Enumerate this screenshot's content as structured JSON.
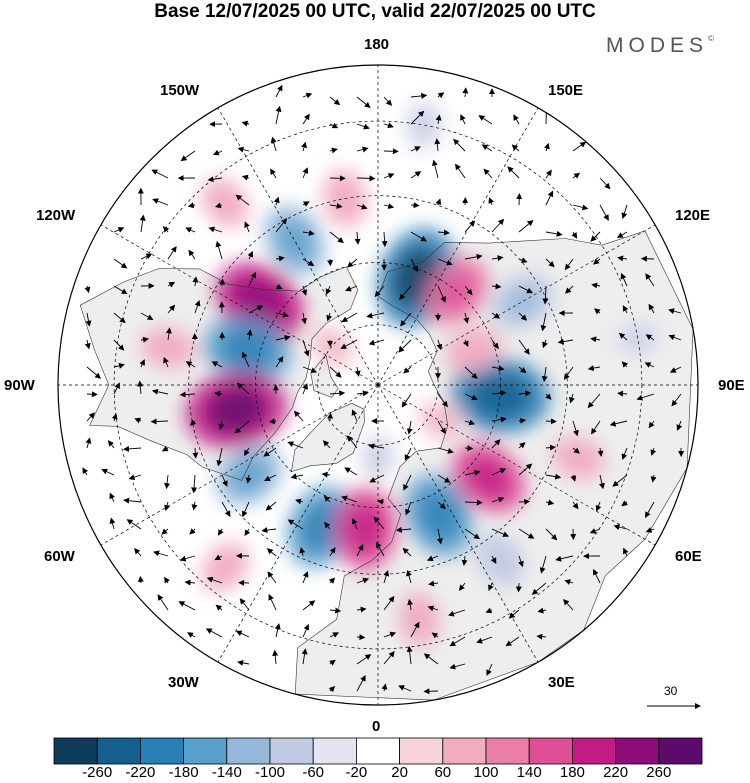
{
  "title": "Base 12/07/2025 00 UTC, valid 22/07/2025 00 UTC",
  "brand": "MODES",
  "brand_mark": "©",
  "longitude_labels": {
    "lon_180": "180",
    "lon_150e": "150E",
    "lon_120e": "120E",
    "lon_90e": "90E",
    "lon_60e": "60E",
    "lon_30e": "30E",
    "lon_0": "0",
    "lon_30w": "30W",
    "lon_60w": "60W",
    "lon_90w": "90W",
    "lon_120w": "120W",
    "lon_150w": "150W"
  },
  "reference_vector_label": "30",
  "colorbar": {
    "ticks": [
      "-260",
      "-220",
      "-180",
      "-140",
      "-100",
      "-60",
      "-20",
      "20",
      "60",
      "100",
      "140",
      "180",
      "220",
      "260"
    ],
    "colors": [
      "#0e3d5c",
      "#155f8c",
      "#2a7fb5",
      "#5a9fcc",
      "#95b8da",
      "#c2cbe4",
      "#e5e4f1",
      "#ffffff",
      "#f7d4d9",
      "#f1adc0",
      "#e97fa8",
      "#df4f98",
      "#c21b84",
      "#8e0c78",
      "#5c0a6b"
    ]
  },
  "anomaly_cells": [
    {
      "lon": 160,
      "lat": 62,
      "value": -200
    },
    {
      "lon": -150,
      "lat": 50,
      "value": -120
    },
    {
      "lon": -125,
      "lat": 55,
      "value": 180
    },
    {
      "lon": -105,
      "lat": 57,
      "value": -160
    },
    {
      "lon": -80,
      "lat": 55,
      "value": 200
    },
    {
      "lon": -55,
      "lat": 52,
      "value": -110
    },
    {
      "lon": -22,
      "lat": 53,
      "value": -150
    },
    {
      "lon": -5,
      "lat": 55,
      "value": 150
    },
    {
      "lon": 25,
      "lat": 55,
      "value": -150
    },
    {
      "lon": 50,
      "lat": 55,
      "value": 140
    },
    {
      "lon": 85,
      "lat": 60,
      "value": -190
    },
    {
      "lon": 120,
      "lat": 50,
      "value": -100
    },
    {
      "lon": 140,
      "lat": 60,
      "value": 120
    },
    {
      "lon": 110,
      "lat": 65,
      "value": 70
    },
    {
      "lon": -170,
      "lat": 45,
      "value": 70
    },
    {
      "lon": -140,
      "lat": 35,
      "value": 60
    },
    {
      "lon": -100,
      "lat": 40,
      "value": 60
    },
    {
      "lon": 35,
      "lat": 40,
      "value": -70
    },
    {
      "lon": 70,
      "lat": 40,
      "value": 60
    },
    {
      "lon": -40,
      "lat": 35,
      "value": 60
    },
    {
      "lon": 10,
      "lat": 35,
      "value": 60
    },
    {
      "lon": -130,
      "lat": 75,
      "value": 50
    },
    {
      "lon": 0,
      "lat": 72,
      "value": -50
    },
    {
      "lon": 60,
      "lat": 72,
      "value": 50
    },
    {
      "lon": 170,
      "lat": 30,
      "value": -60
    },
    {
      "lon": 100,
      "lat": 30,
      "value": -50
    }
  ],
  "colors": {
    "land_fill": "#eeeeee",
    "coastline": "#333333",
    "graticule": "#000000"
  }
}
